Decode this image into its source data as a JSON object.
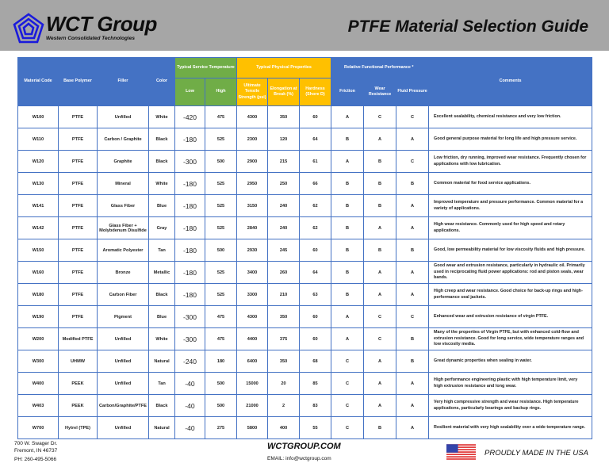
{
  "header": {
    "company": "WCT Group",
    "company_subtitle": "Western Consolidated Technologies",
    "title": "PTFE Material Selection Guide",
    "logo_icon": "pentagon-spiral-logo-icon"
  },
  "table": {
    "group_headers": {
      "service_temp": "Typical Service Temperature",
      "physical": "Typical Physical Properties",
      "performance": "Relative Functional Performance *"
    },
    "columns": {
      "material_code": "Material Code",
      "base_polymer": "Base Polymer",
      "filler": "Filler",
      "color": "Color",
      "low": "Low",
      "high": "High",
      "tensile": "Ultimate Tensile Strength (psi)",
      "elongation": "Elongation at Break (%)",
      "hardness": "Hardness (Shore D)",
      "friction": "Friction",
      "wear": "Wear Resistance",
      "fluid": "Fluid Pressure",
      "comments": "Comments"
    },
    "colors": {
      "blue": "#4472c4",
      "green": "#70ad47",
      "yellow": "#ffc000"
    },
    "rows": [
      {
        "code": "W100",
        "polymer": "PTFE",
        "filler": "Unfilled",
        "color": "White",
        "low": "-420",
        "high": "475",
        "tensile": "4300",
        "elongation": "350",
        "hardness": "60",
        "friction": "A",
        "wear": "C",
        "fluid": "C",
        "comment": "Excellent sealability, chemical resistance and very low friction."
      },
      {
        "code": "W110",
        "polymer": "PTFE",
        "filler": "Carbon / Graphite",
        "color": "Black",
        "low": "-180",
        "high": "525",
        "tensile": "2300",
        "elongation": "120",
        "hardness": "64",
        "friction": "B",
        "wear": "A",
        "fluid": "A",
        "comment": "Good general purpose material for long life and high pressure service."
      },
      {
        "code": "W120",
        "polymer": "PTFE",
        "filler": "Graphite",
        "color": "Black",
        "low": "-300",
        "high": "500",
        "tensile": "2900",
        "elongation": "215",
        "hardness": "61",
        "friction": "A",
        "wear": "B",
        "fluid": "C",
        "comment": "Low friction, dry running, improved wear resistance.  Frequently chosen for applications with low lubrication."
      },
      {
        "code": "W130",
        "polymer": "PTFE",
        "filler": "Mineral",
        "color": "White",
        "low": "-180",
        "high": "525",
        "tensile": "2950",
        "elongation": "250",
        "hardness": "66",
        "friction": "B",
        "wear": "B",
        "fluid": "B",
        "comment": "Common material for food service applications."
      },
      {
        "code": "W141",
        "polymer": "PTFE",
        "filler": "Glass Fiber",
        "color": "Blue",
        "low": "-180",
        "high": "525",
        "tensile": "3150",
        "elongation": "240",
        "hardness": "62",
        "friction": "B",
        "wear": "B",
        "fluid": "A",
        "comment": "Improved temperature and pressure performance.  Common material for a variety of applications."
      },
      {
        "code": "W142",
        "polymer": "PTFE",
        "filler": "Glass Fiber + Molybdenum Disulfide",
        "color": "Gray",
        "low": "-180",
        "high": "525",
        "tensile": "2840",
        "elongation": "240",
        "hardness": "62",
        "friction": "B",
        "wear": "A",
        "fluid": "A",
        "comment": "High wear resistance.  Commonly used for high speed and rotary applications."
      },
      {
        "code": "W150",
        "polymer": "PTFE",
        "filler": "Aromatic Polyester",
        "color": "Tan",
        "low": "-180",
        "high": "500",
        "tensile": "2930",
        "elongation": "245",
        "hardness": "60",
        "friction": "B",
        "wear": "B",
        "fluid": "B",
        "comment": "Good, low permeability material for low viscosity fluids and high pressure."
      },
      {
        "code": "W160",
        "polymer": "PTFE",
        "filler": "Bronze",
        "color": "Metallic",
        "low": "-180",
        "high": "525",
        "tensile": "3400",
        "elongation": "260",
        "hardness": "64",
        "friction": "B",
        "wear": "A",
        "fluid": "A",
        "comment": "Good wear and extrusion resistance, particularly in hydraulic oil.  Primarily used in reciprocating fluid power applications:  rod and piston seals, wear bands."
      },
      {
        "code": "W180",
        "polymer": "PTFE",
        "filler": "Carbon Fiber",
        "color": "Black",
        "low": "-180",
        "high": "525",
        "tensile": "3300",
        "elongation": "210",
        "hardness": "63",
        "friction": "B",
        "wear": "A",
        "fluid": "A",
        "comment": "High creep and wear resistance.  Good choice for back-up rings and high-performance seal jackets."
      },
      {
        "code": "W190",
        "polymer": "PTFE",
        "filler": "Pigment",
        "color": "Blue",
        "low": "-300",
        "high": "475",
        "tensile": "4300",
        "elongation": "350",
        "hardness": "60",
        "friction": "A",
        "wear": "C",
        "fluid": "C",
        "comment": "Enhanced wear and extrusion resistance of virgin PTFE."
      },
      {
        "code": "W200",
        "polymer": "Modified PTFE",
        "filler": "Unfilled",
        "color": "White",
        "low": "-300",
        "high": "475",
        "tensile": "4400",
        "elongation": "375",
        "hardness": "60",
        "friction": "A",
        "wear": "C",
        "fluid": "B",
        "comment": "Many of the properties of Virgin PTFE, but with enhanced cold-flow and extrusion resistance.  Good for long service, wide temperature ranges and low viscosity media."
      },
      {
        "code": "W300",
        "polymer": "UHMW",
        "filler": "Unfilled",
        "color": "Natural",
        "low": "-240",
        "high": "180",
        "tensile": "6400",
        "elongation": "350",
        "hardness": "68",
        "friction": "C",
        "wear": "A",
        "fluid": "B",
        "comment": "Great dynamic properties when sealing in water."
      },
      {
        "code": "W400",
        "polymer": "PEEK",
        "filler": "Unfilled",
        "color": "Tan",
        "low": "-40",
        "high": "500",
        "tensile": "15000",
        "elongation": "20",
        "hardness": "85",
        "friction": "C",
        "wear": "A",
        "fluid": "A",
        "comment": "High performance engineering plastic with high temperature limit, very high extrusion resistance and long wear."
      },
      {
        "code": "W403",
        "polymer": "PEEK",
        "filler": "Carbon/Graphite/PTFE",
        "color": "Black",
        "low": "-40",
        "high": "500",
        "tensile": "21000",
        "elongation": "2",
        "hardness": "83",
        "friction": "C",
        "wear": "A",
        "fluid": "A",
        "comment": "Very high compressive strength and wear resistance.  High temperature applications, particularly bearings and backup rings."
      },
      {
        "code": "W700",
        "polymer": "Hytrel (TPE)",
        "filler": "Unfilled",
        "color": "Natural",
        "low": "-40",
        "high": "275",
        "tensile": "5800",
        "elongation": "400",
        "hardness": "55",
        "friction": "C",
        "wear": "B",
        "fluid": "A",
        "comment": "Resilient material with very high sealability over a wide temperature range."
      }
    ]
  },
  "footer": {
    "address_line1": "700 W. Swager Dr.",
    "address_line2": "Fremont, IN 46737",
    "phone": "PH: 260-495-5066",
    "website": "WCTGROUP.COM",
    "email": "EMAIL: info@wctgroup.com",
    "made_in": "PROUDLY MADE IN THE USA",
    "flag_icon": "us-flag-icon"
  }
}
